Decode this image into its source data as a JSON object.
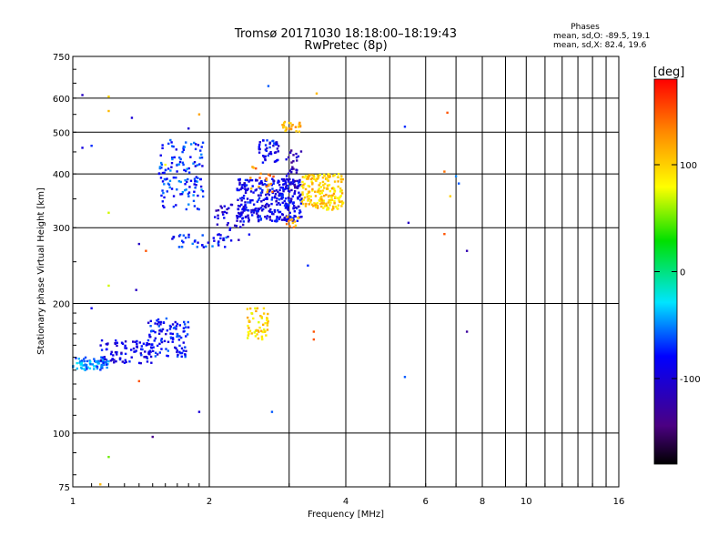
{
  "chart_data": {
    "type": "scatter",
    "title": "Tromsø 20171030 18:18:00–18:19:43",
    "subtitle": "RwPretec (8p)",
    "xlabel": "Frequency [MHz]",
    "ylabel": "Stationary phase Virtual Height [km]",
    "x_scale": "log",
    "y_scale": "log",
    "xlim": [
      1,
      16
    ],
    "ylim": [
      75,
      750
    ],
    "x_ticks": [
      1,
      2,
      4,
      6,
      8,
      10,
      16
    ],
    "x_tick_labels": [
      "1",
      "2",
      "4",
      "6",
      "8",
      "10",
      "16"
    ],
    "x_minor_ticks": [
      3,
      5,
      7,
      9,
      11,
      12,
      13,
      14,
      15
    ],
    "y_ticks": [
      75,
      100,
      200,
      300,
      400,
      500,
      600,
      750
    ],
    "y_tick_labels": [
      "75",
      "100",
      "200",
      "300",
      "400",
      "500",
      "600",
      "750"
    ],
    "grid": true,
    "annotations": {
      "header": "Phases",
      "line1": "mean, sd,O: -89.5, 19.1",
      "line2": "mean, sd,X: 82.4, 19.6"
    },
    "colorbar": {
      "label": "[deg]",
      "range": [
        -180,
        180
      ],
      "ticks": [
        -100,
        0,
        100
      ],
      "tick_labels": [
        "-100",
        "0",
        "100"
      ]
    },
    "clusters": [
      {
        "f": [
          1.0,
          1.2
        ],
        "h": [
          140,
          150
        ],
        "phase": -50,
        "count": 70
      },
      {
        "f": [
          1.15,
          1.5
        ],
        "h": [
          145,
          165
        ],
        "phase": -90,
        "count": 90
      },
      {
        "f": [
          1.45,
          1.8
        ],
        "h": [
          150,
          185
        ],
        "phase": -80,
        "count": 110
      },
      {
        "f": [
          1.55,
          1.95
        ],
        "h": [
          330,
          480
        ],
        "phase": -70,
        "count": 130
      },
      {
        "f": [
          1.65,
          2.2
        ],
        "h": [
          270,
          290
        ],
        "phase": -75,
        "count": 40
      },
      {
        "f": [
          2.05,
          2.45
        ],
        "h": [
          280,
          340
        ],
        "phase": -100,
        "count": 40
      },
      {
        "f": [
          2.3,
          3.2
        ],
        "h": [
          310,
          390
        ],
        "phase": -90,
        "count": 340
      },
      {
        "f": [
          2.55,
          2.85
        ],
        "h": [
          420,
          480
        ],
        "phase": -85,
        "count": 45
      },
      {
        "f": [
          2.95,
          3.2
        ],
        "h": [
          370,
          460
        ],
        "phase": -115,
        "count": 30
      },
      {
        "f": [
          3.2,
          3.95
        ],
        "h": [
          330,
          400
        ],
        "phase": 100,
        "count": 190
      },
      {
        "f": [
          2.9,
          3.2
        ],
        "h": [
          500,
          530
        ],
        "phase": 110,
        "count": 25
      },
      {
        "f": [
          2.4,
          2.7
        ],
        "h": [
          165,
          195
        ],
        "phase": 95,
        "count": 55
      },
      {
        "f": [
          2.45,
          2.8
        ],
        "h": [
          360,
          420
        ],
        "phase": 130,
        "count": 20
      },
      {
        "f": [
          2.95,
          3.15
        ],
        "h": [
          300,
          320
        ],
        "phase": 120,
        "count": 12
      }
    ],
    "scattered_points": [
      {
        "f": 1.05,
        "h": 610,
        "phase": -110
      },
      {
        "f": 1.05,
        "h": 460,
        "phase": -95
      },
      {
        "f": 1.1,
        "h": 465,
        "phase": -70
      },
      {
        "f": 1.2,
        "h": 605,
        "phase": 100
      },
      {
        "f": 1.2,
        "h": 560,
        "phase": 110
      },
      {
        "f": 1.2,
        "h": 325,
        "phase": 70
      },
      {
        "f": 1.2,
        "h": 220,
        "phase": 70
      },
      {
        "f": 1.1,
        "h": 195,
        "phase": -90
      },
      {
        "f": 1.35,
        "h": 540,
        "phase": -100
      },
      {
        "f": 1.4,
        "h": 275,
        "phase": -110
      },
      {
        "f": 1.45,
        "h": 265,
        "phase": 150
      },
      {
        "f": 1.38,
        "h": 215,
        "phase": -110
      },
      {
        "f": 1.6,
        "h": 420,
        "phase": 80
      },
      {
        "f": 1.4,
        "h": 132,
        "phase": 150
      },
      {
        "f": 1.5,
        "h": 98,
        "phase": -140
      },
      {
        "f": 1.2,
        "h": 88,
        "phase": 50
      },
      {
        "f": 1.15,
        "h": 76,
        "phase": 110
      },
      {
        "f": 1.8,
        "h": 510,
        "phase": -100
      },
      {
        "f": 1.9,
        "h": 550,
        "phase": 120
      },
      {
        "f": 1.9,
        "h": 112,
        "phase": -100
      },
      {
        "f": 2.7,
        "h": 640,
        "phase": -60
      },
      {
        "f": 2.75,
        "h": 112,
        "phase": -60
      },
      {
        "f": 3.3,
        "h": 245,
        "phase": -70
      },
      {
        "f": 3.4,
        "h": 172,
        "phase": 150
      },
      {
        "f": 3.4,
        "h": 165,
        "phase": 150
      },
      {
        "f": 3.45,
        "h": 615,
        "phase": 110
      },
      {
        "f": 5.4,
        "h": 515,
        "phase": -70
      },
      {
        "f": 5.5,
        "h": 308,
        "phase": -110
      },
      {
        "f": 5.4,
        "h": 135,
        "phase": -60
      },
      {
        "f": 6.7,
        "h": 555,
        "phase": 150
      },
      {
        "f": 6.6,
        "h": 405,
        "phase": 140
      },
      {
        "f": 6.8,
        "h": 355,
        "phase": 100
      },
      {
        "f": 7.0,
        "h": 395,
        "phase": -50
      },
      {
        "f": 7.1,
        "h": 380,
        "phase": -60
      },
      {
        "f": 6.6,
        "h": 290,
        "phase": 150
      },
      {
        "f": 7.4,
        "h": 265,
        "phase": -120
      },
      {
        "f": 7.4,
        "h": 172,
        "phase": -130
      }
    ]
  }
}
